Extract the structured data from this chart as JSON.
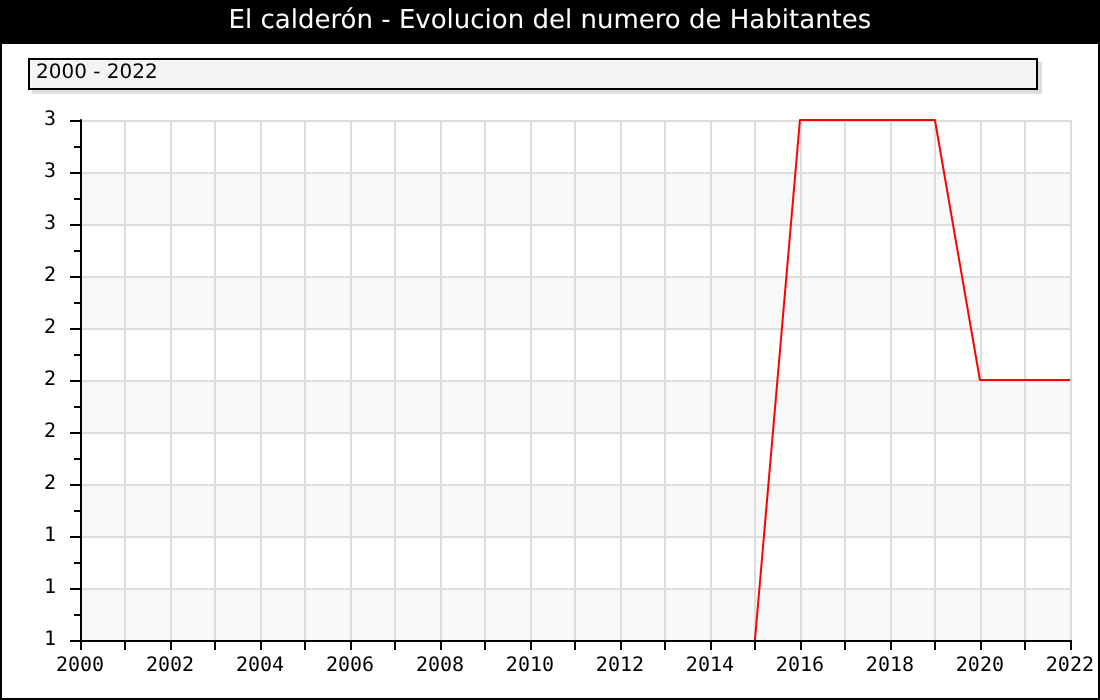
{
  "chart_data": {
    "type": "line",
    "title": "El calderón - Evolucion del numero de Habitantes",
    "subtitle": "2000 - 2022",
    "x": [
      2015,
      2016,
      2017,
      2018,
      2019,
      2020,
      2021,
      2022
    ],
    "series": [
      {
        "color": "#ff0000",
        "values": [
          1,
          3,
          3,
          3,
          3,
          2,
          2,
          2
        ]
      }
    ],
    "xlim": [
      2000,
      2022
    ],
    "xticks": [
      2000,
      {
        "value": 2001,
        "label": null
      },
      2002,
      {
        "value": 2003,
        "label": null
      },
      2004,
      {
        "value": 2005,
        "label": null
      },
      2006,
      {
        "value": 2007,
        "label": null
      },
      2008,
      {
        "value": 2009,
        "label": null
      },
      2010,
      {
        "value": 2011,
        "label": null
      },
      2012,
      {
        "value": 2013,
        "label": null
      },
      2014,
      {
        "value": 2015,
        "label": null
      },
      2016,
      {
        "value": 2017,
        "label": null
      },
      2018,
      {
        "value": 2019,
        "label": null
      },
      2020,
      {
        "value": 2021,
        "label": null
      },
      2022
    ],
    "ylim": [
      1,
      3
    ],
    "yticks": [
      1,
      {
        "value": 1.2,
        "label": "1"
      },
      {
        "value": 1.4,
        "label": "1"
      },
      {
        "value": 1.6,
        "label": "2"
      },
      {
        "value": 1.8,
        "label": "2"
      },
      2,
      {
        "value": 2.2,
        "label": "2"
      },
      {
        "value": 2.4,
        "label": "2"
      },
      {
        "value": 2.6,
        "label": "3"
      },
      {
        "value": 2.8,
        "label": "3"
      },
      3
    ],
    "grid": true,
    "marker": "none",
    "line_style": "solid"
  }
}
